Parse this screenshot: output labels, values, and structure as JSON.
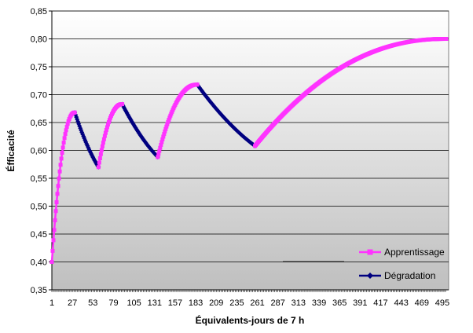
{
  "chart_data": {
    "type": "line",
    "title": "",
    "xlabel": "Équivalents-jours de 7 h",
    "ylabel": "Éfficacité",
    "xlim": [
      1,
      503
    ],
    "ylim": [
      0.35,
      0.85
    ],
    "x_ticks": [
      "1",
      "27",
      "53",
      "79",
      "105",
      "131",
      "157",
      "183",
      "209",
      "235",
      "261",
      "287",
      "313",
      "339",
      "365",
      "391",
      "417",
      "443",
      "469",
      "495"
    ],
    "y_ticks": [
      "0,35",
      "0,40",
      "0,45",
      "0,50",
      "0,55",
      "0,60",
      "0,65",
      "0,70",
      "0,75",
      "0,80",
      "0,85"
    ],
    "grid": true,
    "legend_position": "bottom-right",
    "series": [
      {
        "name": "Apprentissage",
        "color": "#ff33ff",
        "marker": "square",
        "segments": [
          {
            "x_start": 1,
            "x_end": 30,
            "y_start": 0.4,
            "y_end": 0.668
          },
          {
            "x_start": 60,
            "x_end": 90,
            "y_start": 0.57,
            "y_end": 0.683
          },
          {
            "x_start": 135,
            "x_end": 185,
            "y_start": 0.588,
            "y_end": 0.718
          },
          {
            "x_start": 258,
            "x_end": 500,
            "y_start": 0.608,
            "y_end": 0.8
          }
        ]
      },
      {
        "name": "Dégradation",
        "color": "#000080",
        "marker": "diamond",
        "segments": [
          {
            "x_start": 30,
            "x_end": 60,
            "y_start": 0.668,
            "y_end": 0.57
          },
          {
            "x_start": 90,
            "x_end": 135,
            "y_start": 0.683,
            "y_end": 0.588
          },
          {
            "x_start": 185,
            "x_end": 258,
            "y_start": 0.718,
            "y_end": 0.608
          }
        ]
      }
    ]
  }
}
